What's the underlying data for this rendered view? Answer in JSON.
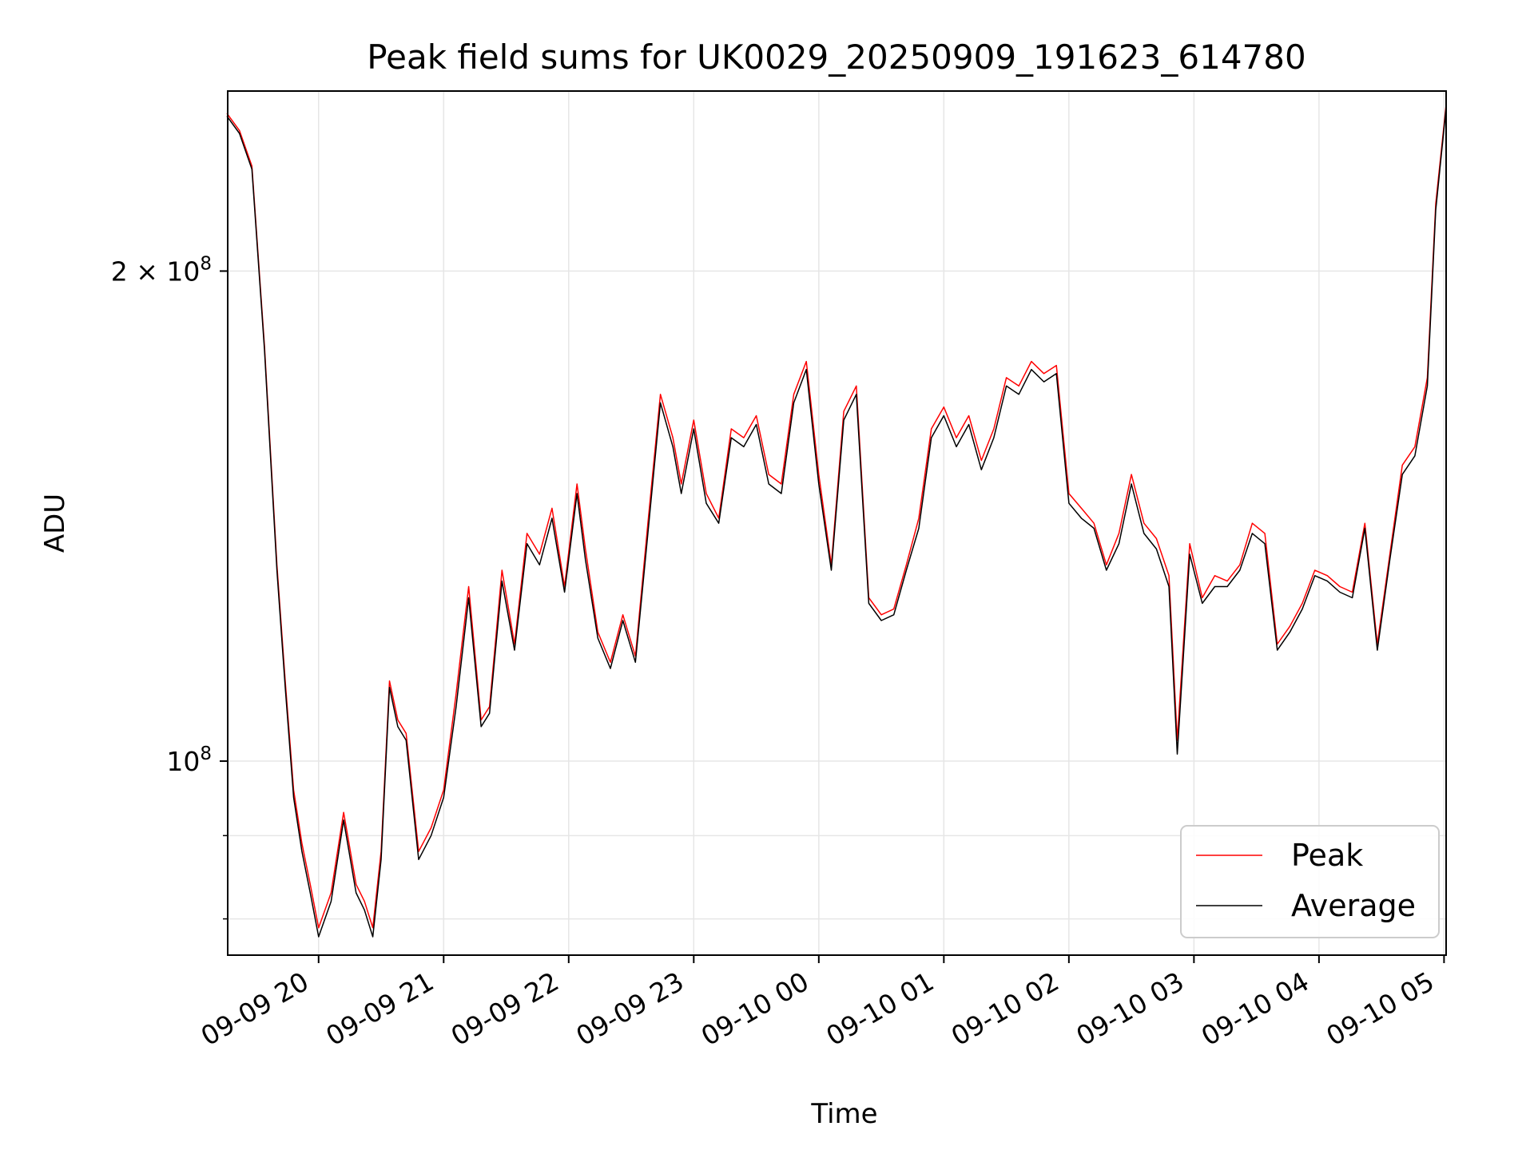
{
  "chart_data": {
    "type": "line",
    "title": "Peak field sums for UK0029_20250909_191623_614780",
    "xlabel": "Time",
    "ylabel": "ADU",
    "y_scale": "log",
    "ylim": [
      76000000,
      258000000
    ],
    "xlim": [
      "2025-09-09 19:16:23",
      "2025-09-10 05:01:00"
    ],
    "grid": true,
    "legend": "lower-right",
    "x_tick_labels": [
      "09-09 20",
      "09-09 21",
      "09-09 22",
      "09-09 23",
      "09-10 00",
      "09-10 01",
      "09-10 02",
      "09-10 03",
      "09-10 04",
      "09-10 05"
    ],
    "x_ticks": [
      "2025-09-09 20:00",
      "2025-09-09 21:00",
      "2025-09-09 22:00",
      "2025-09-09 23:00",
      "2025-09-10 00:00",
      "2025-09-10 01:00",
      "2025-09-10 02:00",
      "2025-09-10 03:00",
      "2025-09-10 04:00",
      "2025-09-10 05:00"
    ],
    "y_major_ticks": [
      {
        "value": 100000000,
        "base": "10",
        "exp": "8"
      },
      {
        "value": 200000000,
        "base": "2 × 10",
        "exp": "8"
      }
    ],
    "y_minor_ticks": [
      80000000,
      90000000
    ],
    "x": [
      "2025-09-09 19:16",
      "2025-09-09 19:22",
      "2025-09-09 19:28",
      "2025-09-09 19:34",
      "2025-09-09 19:40",
      "2025-09-09 19:44",
      "2025-09-09 19:48",
      "2025-09-09 19:52",
      "2025-09-09 19:56",
      "2025-09-09 20:00",
      "2025-09-09 20:06",
      "2025-09-09 20:12",
      "2025-09-09 20:18",
      "2025-09-09 20:22",
      "2025-09-09 20:26",
      "2025-09-09 20:30",
      "2025-09-09 20:34",
      "2025-09-09 20:38",
      "2025-09-09 20:42",
      "2025-09-09 20:48",
      "2025-09-09 20:54",
      "2025-09-09 21:00",
      "2025-09-09 21:06",
      "2025-09-09 21:12",
      "2025-09-09 21:18",
      "2025-09-09 21:22",
      "2025-09-09 21:28",
      "2025-09-09 21:34",
      "2025-09-09 21:40",
      "2025-09-09 21:46",
      "2025-09-09 21:52",
      "2025-09-09 21:58",
      "2025-09-09 22:04",
      "2025-09-09 22:08",
      "2025-09-09 22:14",
      "2025-09-09 22:20",
      "2025-09-09 22:26",
      "2025-09-09 22:32",
      "2025-09-09 22:38",
      "2025-09-09 22:44",
      "2025-09-09 22:50",
      "2025-09-09 22:54",
      "2025-09-09 23:00",
      "2025-09-09 23:06",
      "2025-09-09 23:12",
      "2025-09-09 23:18",
      "2025-09-09 23:24",
      "2025-09-09 23:30",
      "2025-09-09 23:36",
      "2025-09-09 23:42",
      "2025-09-09 23:48",
      "2025-09-09 23:54",
      "2025-09-10 00:00",
      "2025-09-10 00:06",
      "2025-09-10 00:12",
      "2025-09-10 00:18",
      "2025-09-10 00:24",
      "2025-09-10 00:30",
      "2025-09-10 00:36",
      "2025-09-10 00:42",
      "2025-09-10 00:48",
      "2025-09-10 00:54",
      "2025-09-10 01:00",
      "2025-09-10 01:06",
      "2025-09-10 01:12",
      "2025-09-10 01:18",
      "2025-09-10 01:24",
      "2025-09-10 01:30",
      "2025-09-10 01:36",
      "2025-09-10 01:42",
      "2025-09-10 01:48",
      "2025-09-10 01:54",
      "2025-09-10 02:00",
      "2025-09-10 02:06",
      "2025-09-10 02:12",
      "2025-09-10 02:18",
      "2025-09-10 02:24",
      "2025-09-10 02:30",
      "2025-09-10 02:36",
      "2025-09-10 02:42",
      "2025-09-10 02:48",
      "2025-09-10 02:52",
      "2025-09-10 02:58",
      "2025-09-10 03:04",
      "2025-09-10 03:10",
      "2025-09-10 03:16",
      "2025-09-10 03:22",
      "2025-09-10 03:28",
      "2025-09-10 03:34",
      "2025-09-10 03:40",
      "2025-09-10 03:46",
      "2025-09-10 03:52",
      "2025-09-10 03:58",
      "2025-09-10 04:04",
      "2025-09-10 04:10",
      "2025-09-10 04:16",
      "2025-09-10 04:22",
      "2025-09-10 04:28",
      "2025-09-10 04:34",
      "2025-09-10 04:40",
      "2025-09-10 04:46",
      "2025-09-10 04:52",
      "2025-09-10 04:56",
      "2025-09-10 05:01"
    ],
    "series": [
      {
        "name": "Peak",
        "color": "#ff0000",
        "values": [
          250000000,
          244000000,
          232000000,
          180000000,
          132000000,
          112000000,
          96000000,
          89000000,
          84000000,
          79000000,
          83000000,
          93000000,
          84000000,
          82000000,
          79000000,
          88000000,
          112000000,
          106000000,
          104000000,
          88000000,
          91000000,
          96000000,
          110000000,
          128000000,
          106000000,
          108000000,
          131000000,
          118000000,
          138000000,
          134000000,
          143000000,
          128000000,
          148000000,
          135000000,
          120000000,
          115000000,
          123000000,
          116000000,
          140000000,
          168000000,
          158000000,
          148000000,
          162000000,
          146000000,
          141000000,
          160000000,
          158000000,
          163000000,
          150000000,
          148000000,
          168000000,
          176000000,
          150000000,
          132000000,
          164000000,
          170000000,
          126000000,
          123000000,
          124000000,
          132000000,
          141000000,
          160000000,
          165000000,
          158000000,
          163000000,
          153000000,
          160000000,
          172000000,
          170000000,
          176000000,
          173000000,
          175000000,
          146000000,
          143000000,
          140000000,
          132000000,
          138000000,
          150000000,
          140000000,
          137000000,
          130000000,
          103000000,
          136000000,
          126000000,
          130000000,
          129000000,
          132000000,
          140000000,
          138000000,
          118000000,
          121000000,
          125000000,
          131000000,
          130000000,
          128000000,
          127000000,
          140000000,
          118000000,
          134000000,
          152000000,
          156000000,
          172000000,
          220000000,
          253000000
        ]
      },
      {
        "name": "Average",
        "color": "#000000",
        "values": [
          249000000,
          243000000,
          231000000,
          179000000,
          131000000,
          111000000,
          95000000,
          88000000,
          83000000,
          78000000,
          82000000,
          92000000,
          83000000,
          81000000,
          78000000,
          87000000,
          111000000,
          105000000,
          103000000,
          87000000,
          90000000,
          95000000,
          108000000,
          126000000,
          105000000,
          107000000,
          129000000,
          117000000,
          136000000,
          132000000,
          141000000,
          127000000,
          146000000,
          133000000,
          119000000,
          114000000,
          122000000,
          115000000,
          138000000,
          166000000,
          156000000,
          146000000,
          160000000,
          144000000,
          140000000,
          158000000,
          156000000,
          161000000,
          148000000,
          146000000,
          166000000,
          174000000,
          148000000,
          131000000,
          162000000,
          168000000,
          125000000,
          122000000,
          123000000,
          131000000,
          139000000,
          158000000,
          163000000,
          156000000,
          161000000,
          151000000,
          158000000,
          170000000,
          168000000,
          174000000,
          171000000,
          173000000,
          144000000,
          141000000,
          139000000,
          131000000,
          136000000,
          148000000,
          138000000,
          135000000,
          128000000,
          101000000,
          134000000,
          125000000,
          128000000,
          128000000,
          131000000,
          138000000,
          136000000,
          117000000,
          120000000,
          124000000,
          130000000,
          129000000,
          127000000,
          126000000,
          139000000,
          117000000,
          133000000,
          150000000,
          154000000,
          170000000,
          218000000,
          252000000
        ]
      }
    ]
  }
}
